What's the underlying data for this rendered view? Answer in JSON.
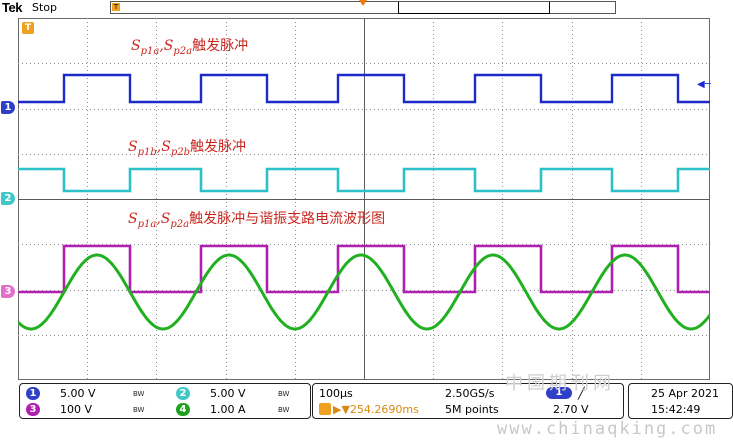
{
  "header": {
    "brand": "Tek",
    "acquisition_state": "Stop",
    "trigger_position_glyph": "T",
    "trigger_position_icon": "trigger-position-icon"
  },
  "annotations": {
    "line1_main": "S",
    "line1_sub_a": "p1a",
    "line1_sep": ",S",
    "line1_sub_b": "p2a",
    "line1_text": "触发脉冲",
    "line2_main": "S",
    "line2_sub_a": "p1b",
    "line2_sep": ",S",
    "line2_sub_b": "p2b",
    "line2_text": "触发脉冲",
    "line3_main": "S",
    "line3_sub_a": "p1a",
    "line3_sep": ",S",
    "line3_sub_b": "p2a",
    "line3_text": "触发脉冲与谐振支路电流波形图"
  },
  "channel_markers": {
    "ch1": "1",
    "ch2": "2",
    "ch3": "3",
    "trigger": "T"
  },
  "colors": {
    "ch1": "#1c2bc8",
    "ch2": "#2cc0c8",
    "ch3": "#b020b0",
    "ch4": "#20b020",
    "trigger": "#f0a020",
    "grid": "#9a9a9a",
    "annotation": "#c8261e"
  },
  "readout": {
    "channels": [
      {
        "num": "1",
        "scale": "5.00 V",
        "bw": "BW",
        "color": "#2f3fc8"
      },
      {
        "num": "2",
        "scale": "5.00 V",
        "bw": "BW",
        "color": "#40c8c8"
      },
      {
        "num": "3",
        "scale": "100 V",
        "bw": "BW",
        "color": "#b020b0"
      },
      {
        "num": "4",
        "scale": "1.00 A",
        "bw": "BW",
        "color": "#20a020"
      }
    ],
    "horizontal": {
      "time_per_div": "100μs",
      "sample_rate": "2.50GS/s",
      "trigger_delay": "▶▼254.2690ms",
      "record_length": "5M points",
      "trigger_source": "1",
      "trigger_slope": "╱",
      "trigger_level": "2.70 V"
    },
    "date": "25 Apr 2021",
    "time": "15:42:49"
  },
  "watermark": {
    "cn": "中国期刊网",
    "url": "www.chinaqking.com"
  }
}
